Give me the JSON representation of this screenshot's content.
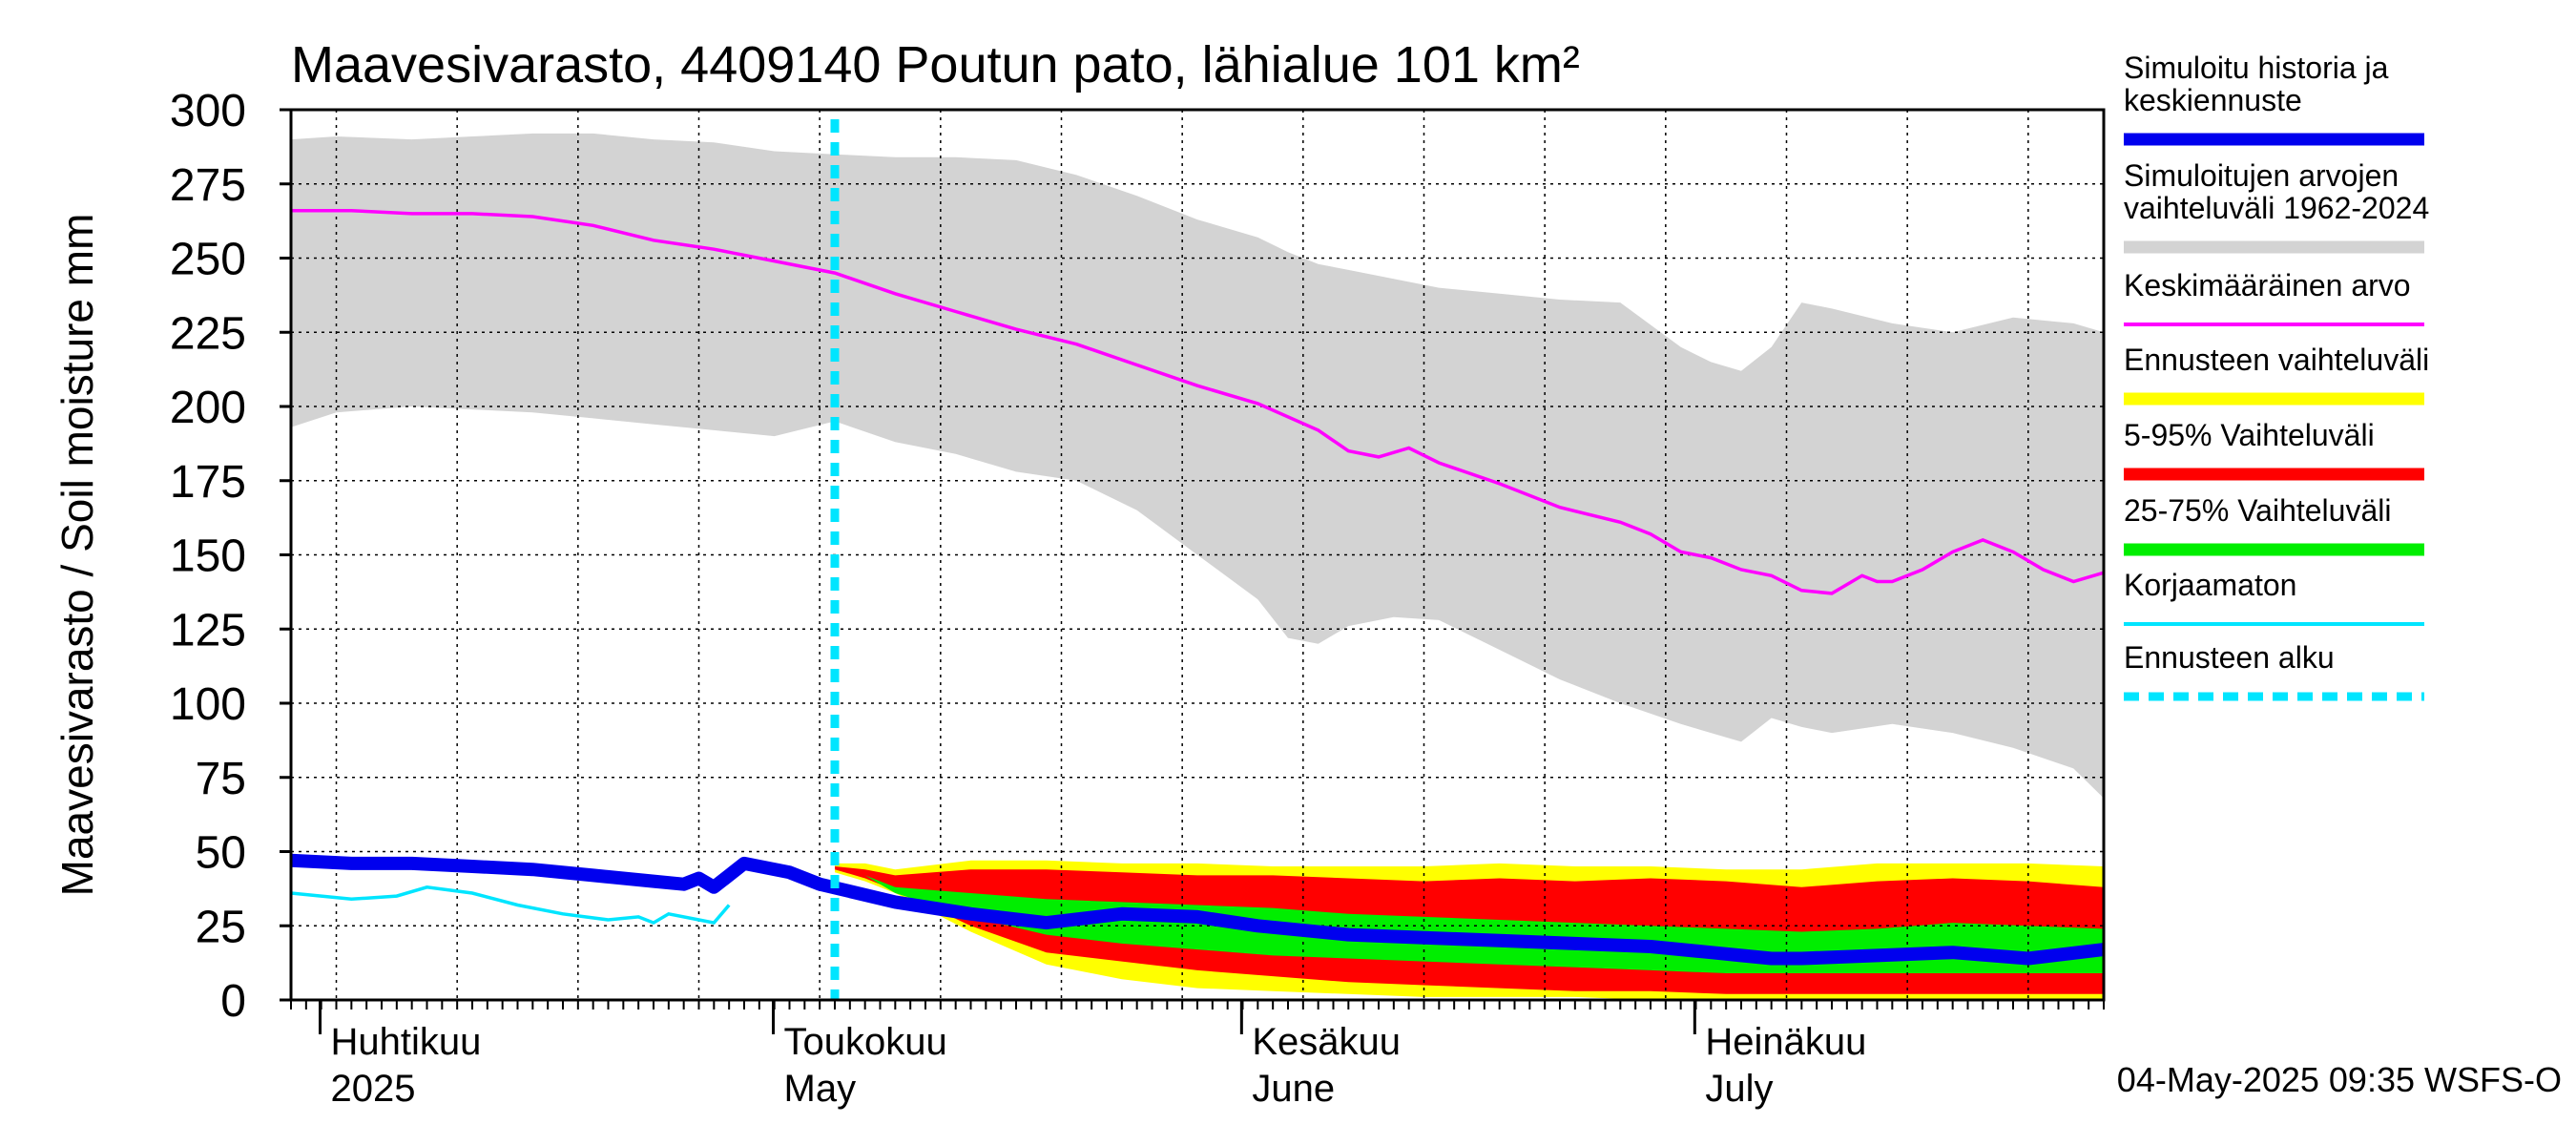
{
  "chart_data": {
    "type": "area",
    "title": "Maavesivarasto, 4409140 Poutun pato, lähialue 101 km²",
    "ylabel": "Maavesivarasto / Soil moisture   mm",
    "ylim": [
      0,
      300
    ],
    "yticks": [
      0,
      25,
      50,
      75,
      100,
      125,
      150,
      175,
      200,
      225,
      250,
      275,
      300
    ],
    "x_range_days": [
      0,
      120
    ],
    "x_start_date": "2025-03-29",
    "month_ticks": [
      {
        "day": 3,
        "fi": "Huhtikuu",
        "en": "2025"
      },
      {
        "day": 33,
        "fi": "Toukokuu",
        "en": "May"
      },
      {
        "day": 64,
        "fi": "Kesäkuu",
        "en": "June"
      },
      {
        "day": 94,
        "fi": "Heinäkuu",
        "en": "July"
      }
    ],
    "forecast_start_day": 36,
    "series": [
      {
        "name": "Simuloitujen arvojen vaihteluväli 1962-2024",
        "x": [
          0,
          3,
          8,
          12,
          16,
          20,
          24,
          28,
          32,
          36,
          40,
          44,
          48,
          52,
          56,
          60,
          64,
          66,
          68,
          70,
          73,
          76,
          80,
          84,
          88,
          92,
          94,
          96,
          98,
          100,
          102,
          106,
          110,
          114,
          118,
          120
        ],
        "upper": [
          290,
          291,
          290,
          291,
          292,
          292,
          290,
          289,
          286,
          285,
          284,
          284,
          283,
          278,
          271,
          263,
          257,
          252,
          248,
          246,
          243,
          240,
          238,
          236,
          235,
          220,
          215,
          212,
          220,
          235,
          233,
          228,
          225,
          230,
          228,
          225
        ],
        "lower": [
          193,
          198,
          200,
          199,
          198,
          196,
          194,
          192,
          190,
          195,
          188,
          184,
          178,
          175,
          165,
          150,
          135,
          122,
          120,
          126,
          129,
          128,
          118,
          108,
          100,
          93,
          90,
          87,
          95,
          92,
          90,
          93,
          90,
          85,
          78,
          68
        ]
      },
      {
        "name": "Keskimääräinen arvo",
        "color": "#ff00ff",
        "x": [
          0,
          4,
          8,
          12,
          16,
          20,
          24,
          28,
          32,
          36,
          40,
          44,
          48,
          52,
          56,
          60,
          64,
          68,
          70,
          72,
          74,
          76,
          80,
          84,
          88,
          90,
          92,
          94,
          96,
          98,
          100,
          102,
          104,
          105,
          106,
          108,
          110,
          112,
          114,
          116,
          118,
          120
        ],
        "values": [
          266,
          266,
          265,
          265,
          264,
          261,
          256,
          253,
          249,
          245,
          238,
          232,
          226,
          221,
          214,
          207,
          201,
          192,
          185,
          183,
          186,
          181,
          174,
          166,
          161,
          157,
          151,
          149,
          145,
          143,
          138,
          137,
          143,
          141,
          141,
          145,
          151,
          155,
          151,
          145,
          141,
          144
        ]
      },
      {
        "name": "Simuloitu historia ja keskiennuste",
        "color": "#0000ee",
        "x": [
          0,
          4,
          8,
          12,
          16,
          20,
          24,
          26,
          27,
          28,
          30,
          33,
          35,
          40,
          45,
          50,
          55,
          60,
          64,
          70,
          75,
          80,
          85,
          90,
          94,
          96,
          98,
          100,
          105,
          110,
          115,
          120
        ],
        "values": [
          47,
          46,
          46,
          45,
          44,
          42,
          40,
          39,
          41,
          38,
          46,
          43,
          39,
          33,
          29,
          26,
          29,
          28,
          25,
          22,
          21,
          20,
          19,
          18,
          16,
          15,
          14,
          14,
          15,
          16,
          14,
          17
        ]
      },
      {
        "name": "Korjaamaton",
        "color": "#00e5ff",
        "x": [
          0,
          4,
          7,
          9,
          12,
          15,
          18,
          21,
          23,
          24,
          25,
          27,
          28,
          29
        ],
        "values": [
          36,
          34,
          35,
          38,
          36,
          32,
          29,
          27,
          28,
          26,
          29,
          27,
          26,
          32
        ]
      },
      {
        "name": "Ennusteen vaihteluväli",
        "color": "#ffff00",
        "x": [
          36,
          38,
          40,
          45,
          50,
          55,
          60,
          65,
          70,
          75,
          80,
          85,
          90,
          95,
          100,
          105,
          110,
          115,
          120
        ],
        "upper": [
          46,
          46,
          44,
          47,
          47,
          46,
          46,
          45,
          45,
          45,
          46,
          45,
          45,
          44,
          44,
          46,
          46,
          46,
          45
        ],
        "lower": [
          43,
          40,
          36,
          23,
          12,
          7,
          4,
          3,
          2,
          1,
          1,
          1,
          0,
          0,
          0,
          0,
          0,
          0,
          0
        ]
      },
      {
        "name": "5-95% Vaihteluväli",
        "color": "#ff0000",
        "x": [
          36,
          38,
          40,
          45,
          50,
          55,
          60,
          65,
          70,
          75,
          80,
          85,
          90,
          95,
          100,
          105,
          110,
          115,
          120
        ],
        "upper": [
          45,
          44,
          42,
          44,
          44,
          43,
          42,
          42,
          41,
          40,
          41,
          40,
          41,
          40,
          38,
          40,
          41,
          40,
          38
        ],
        "lower": [
          44,
          41,
          37,
          25,
          16,
          13,
          10,
          8,
          6,
          5,
          4,
          3,
          3,
          2,
          2,
          2,
          2,
          2,
          2
        ]
      },
      {
        "name": "25-75% Vaihteluväli",
        "color": "#00ee00",
        "x": [
          36,
          38,
          40,
          45,
          50,
          55,
          60,
          65,
          70,
          75,
          80,
          85,
          90,
          95,
          100,
          105,
          110,
          115,
          120
        ],
        "upper": [
          44,
          42,
          38,
          36,
          34,
          33,
          32,
          31,
          29,
          28,
          27,
          26,
          25,
          24,
          23,
          24,
          26,
          25,
          24
        ],
        "lower": [
          44,
          42,
          36,
          28,
          22,
          19,
          17,
          15,
          14,
          13,
          12,
          11,
          10,
          9,
          9,
          9,
          9,
          9,
          9
        ]
      },
      {
        "name": "Ennusteen alku",
        "color": "#00e5ff"
      }
    ]
  },
  "legend": [
    {
      "label": "Simuloitu historia ja keskiennuste",
      "color": "#0000ee",
      "style": "thick"
    },
    {
      "label": "Simuloitujen arvojen vaihteluväli 1962-2024",
      "color": "#d3d3d3",
      "style": "thick"
    },
    {
      "label": "Keskimääräinen arvo",
      "color": "#ff00ff",
      "style": "thin"
    },
    {
      "label": "Ennusteen vaihteluväli",
      "color": "#ffff00",
      "style": "thick"
    },
    {
      "label": "5-95% Vaihteluväli",
      "color": "#ff0000",
      "style": "thick"
    },
    {
      "label": "25-75% Vaihteluväli",
      "color": "#00ee00",
      "style": "thick"
    },
    {
      "label": "Korjaamaton",
      "color": "#00e5ff",
      "style": "thin"
    },
    {
      "label": "Ennusteen alku",
      "color": "#00e5ff",
      "style": "dashed"
    }
  ],
  "footer": "04-May-2025 09:35 WSFS-O"
}
